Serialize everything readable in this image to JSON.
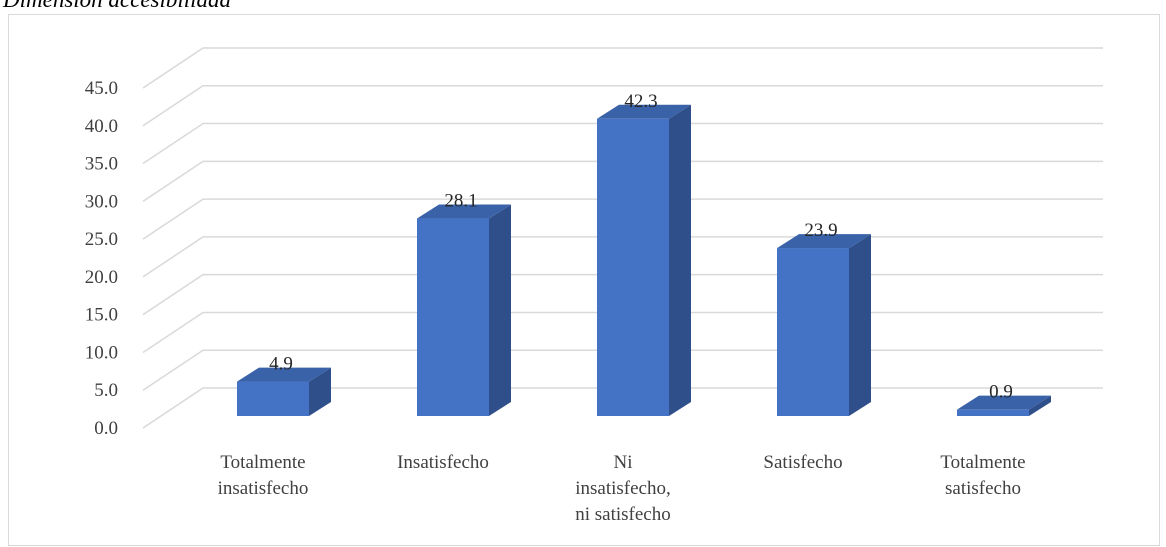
{
  "page": {
    "title": "Dimensión accesibilidad"
  },
  "chart_data": {
    "type": "bar",
    "title": "",
    "xlabel": "",
    "ylabel": "",
    "categories": [
      [
        "Totalmente",
        "insatisfecho"
      ],
      [
        "Insatisfecho"
      ],
      [
        "Ni",
        "insatisfecho,",
        "ni satisfecho"
      ],
      [
        "Satisfecho"
      ],
      [
        "Totalmente",
        "satisfecho"
      ]
    ],
    "values": [
      4.9,
      28.1,
      42.3,
      23.9,
      0.9
    ],
    "data_labels": [
      "4.9",
      "28.1",
      "42.3",
      "23.9",
      "0.9"
    ],
    "ylim": [
      0,
      45
    ],
    "y_ticks": [
      "0.0",
      "5.0",
      "10.0",
      "15.0",
      "20.0",
      "25.0",
      "30.0",
      "35.0",
      "40.0",
      "45.0"
    ],
    "grid": true,
    "legend": "none",
    "style": "3d-column",
    "colors": {
      "front": "#4472c4",
      "side": "#2f4f8a",
      "top": "#3a62a8",
      "grid": "#d9d9d9",
      "text": "#404040"
    }
  }
}
